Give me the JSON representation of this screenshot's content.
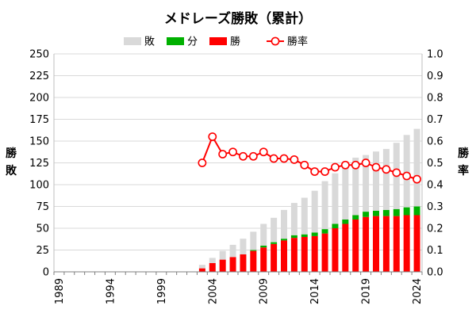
{
  "chart_data": {
    "type": "bar",
    "title": "メドレーズ勝敗（累計）",
    "stacked": true,
    "categories": [
      1989,
      1990,
      1991,
      1992,
      1993,
      1994,
      1995,
      1996,
      1997,
      1998,
      1999,
      2000,
      2001,
      2002,
      2003,
      2004,
      2005,
      2006,
      2007,
      2008,
      2009,
      2010,
      2011,
      2012,
      2013,
      2014,
      2015,
      2016,
      2017,
      2018,
      2019,
      2020,
      2021,
      2022,
      2023,
      2024
    ],
    "xtick_labels": [
      "1989",
      "1994",
      "1999",
      "2004",
      "2009",
      "2014",
      "2019",
      "2024"
    ],
    "series": [
      {
        "name": "勝",
        "color": "#ff0000",
        "values": [
          0,
          0,
          0,
          0,
          0,
          0,
          0,
          0,
          0,
          0,
          0,
          0,
          0,
          0,
          4,
          10,
          14,
          17,
          20,
          24,
          28,
          32,
          36,
          39,
          40,
          41,
          44,
          50,
          55,
          60,
          63,
          64,
          64,
          64,
          65,
          65
        ]
      },
      {
        "name": "分",
        "color": "#00b000",
        "values": [
          0,
          0,
          0,
          0,
          0,
          0,
          0,
          0,
          0,
          0,
          0,
          0,
          0,
          0,
          0,
          0,
          0,
          0,
          0,
          1,
          2,
          2,
          2,
          3,
          3,
          4,
          5,
          5,
          5,
          5,
          6,
          6,
          7,
          8,
          9,
          10
        ]
      },
      {
        "name": "敗",
        "color": "#d9d9d9",
        "values": [
          0,
          0,
          0,
          0,
          0,
          0,
          0,
          0,
          0,
          0,
          0,
          0,
          0,
          0,
          4,
          6,
          10,
          14,
          18,
          21,
          25,
          28,
          33,
          37,
          42,
          48,
          55,
          58,
          62,
          66,
          65,
          68,
          70,
          76,
          83,
          89
        ]
      }
    ],
    "line_series": {
      "name": "勝率",
      "color": "#ff0000",
      "axis": "right",
      "values": [
        null,
        null,
        null,
        null,
        null,
        null,
        null,
        null,
        null,
        null,
        null,
        null,
        null,
        null,
        0.5,
        0.62,
        0.54,
        0.55,
        0.53,
        0.53,
        0.55,
        0.52,
        0.52,
        0.515,
        0.49,
        0.46,
        0.46,
        0.48,
        0.49,
        0.49,
        0.5,
        0.48,
        0.47,
        0.455,
        0.44,
        0.425
      ]
    },
    "ylabel": "勝敗",
    "ylabel2": "勝率",
    "ylim": [
      0,
      250
    ],
    "y_ticks": [
      0,
      25,
      50,
      75,
      100,
      125,
      150,
      175,
      200,
      225,
      250
    ],
    "y2lim": [
      0,
      1.0
    ],
    "y2_ticks": [
      "0.0",
      "0.1",
      "0.2",
      "0.3",
      "0.4",
      "0.5",
      "0.6",
      "0.7",
      "0.8",
      "0.9",
      "1.0"
    ],
    "legend_position": "top",
    "legend_order": [
      "敗",
      "分",
      "勝",
      "勝率"
    ],
    "grid": true
  }
}
